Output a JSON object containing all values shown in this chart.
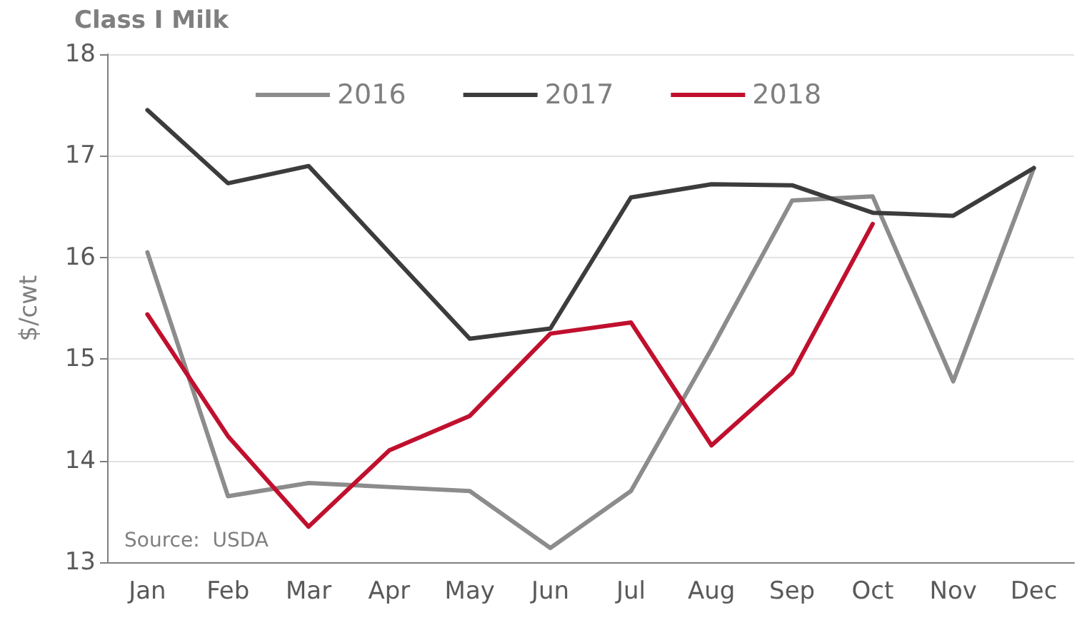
{
  "chart_data": {
    "type": "line",
    "title": "Class I Milk",
    "ylabel": "$/cwt",
    "annotations": [
      "Source:  USDA"
    ],
    "categories": [
      "Jan",
      "Feb",
      "Mar",
      "Apr",
      "May",
      "Jun",
      "Jul",
      "Aug",
      "Sep",
      "Oct",
      "Nov",
      "Dec"
    ],
    "series": [
      {
        "name": "2016",
        "color": "#8c8c8c",
        "values": [
          16.05,
          13.65,
          13.78,
          13.74,
          13.7,
          13.14,
          13.7,
          15.1,
          16.56,
          16.6,
          14.78,
          16.88
        ]
      },
      {
        "name": "2017",
        "color": "#3c3c3c",
        "values": [
          17.45,
          16.73,
          16.9,
          16.05,
          15.2,
          15.3,
          16.59,
          16.72,
          16.71,
          16.44,
          16.41,
          16.88
        ]
      },
      {
        "name": "2018",
        "color": "#c0102e",
        "values": [
          15.44,
          14.24,
          13.35,
          14.1,
          14.44,
          15.25,
          15.36,
          14.15,
          14.86,
          16.33,
          null,
          null
        ]
      }
    ],
    "ylim": [
      13,
      18
    ],
    "yticks": [
      13,
      14,
      15,
      16,
      17,
      18
    ],
    "grid": "y",
    "legend": "top",
    "marker": "none",
    "line_style": "solid"
  }
}
